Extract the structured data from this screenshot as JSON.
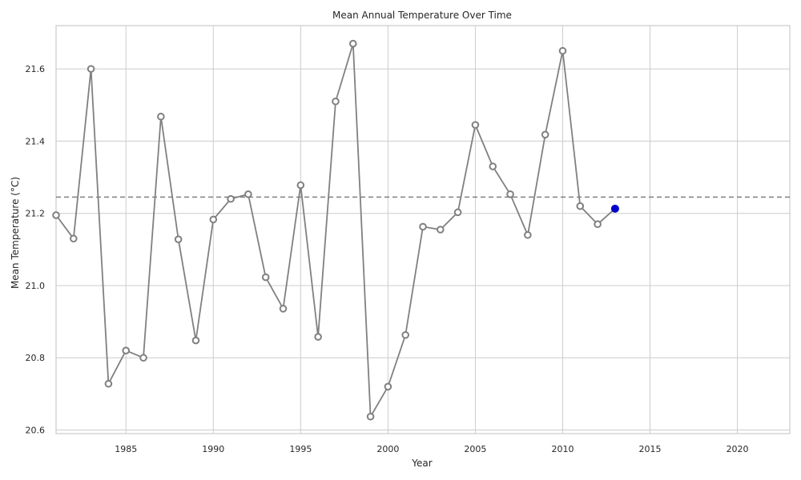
{
  "chart_data": {
    "type": "line",
    "title": "Mean Annual Temperature Over Time",
    "xlabel": "Year",
    "ylabel": "Mean Temperature (°C)",
    "xlim": [
      1981,
      2023
    ],
    "ylim": [
      20.59,
      21.72
    ],
    "xticks": [
      1985,
      1990,
      1995,
      2000,
      2005,
      2010,
      2015,
      2020
    ],
    "yticks": [
      20.6,
      20.8,
      21.0,
      21.2,
      21.4,
      21.6
    ],
    "grid": true,
    "reference_line": {
      "style": "dashed",
      "y": 21.245,
      "color": "#808080"
    },
    "series": [
      {
        "color": "#808080",
        "marker": "open-circle",
        "x": [
          1981,
          1982,
          1983,
          1984,
          1985,
          1986,
          1987,
          1988,
          1989,
          1990,
          1991,
          1992,
          1993,
          1994,
          1995,
          1996,
          1997,
          1998,
          1999,
          2000,
          2001,
          2002,
          2003,
          2004,
          2005,
          2006,
          2007,
          2008,
          2009,
          2010,
          2011,
          2012,
          2013
        ],
        "values": [
          21.195,
          21.13,
          21.6,
          20.728,
          20.82,
          20.8,
          21.468,
          21.128,
          20.848,
          21.183,
          21.24,
          21.253,
          21.023,
          20.936,
          21.278,
          20.858,
          21.51,
          21.67,
          20.637,
          20.72,
          20.863,
          21.163,
          21.155,
          21.203,
          21.445,
          21.33,
          21.253,
          21.14,
          21.418,
          21.65,
          21.22,
          21.17,
          21.213
        ]
      }
    ],
    "highlight": {
      "x": 2013,
      "y": 21.213,
      "color": "#0000cc"
    }
  }
}
